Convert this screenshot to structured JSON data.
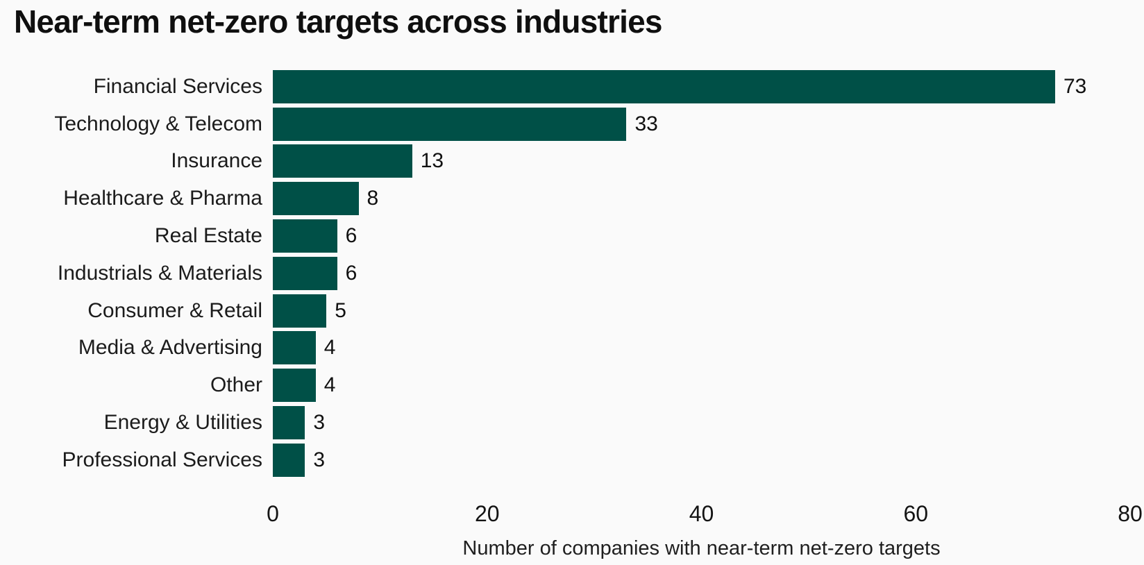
{
  "page": {
    "background": "#fafafa"
  },
  "chart_data": {
    "type": "bar",
    "orientation": "horizontal",
    "title": "Near-term net-zero targets across industries",
    "categories": [
      "Financial Services",
      "Technology & Telecom",
      "Insurance",
      "Healthcare & Pharma",
      "Real Estate",
      "Industrials & Materials",
      "Consumer & Retail",
      "Media & Advertising",
      "Other",
      "Energy & Utilities",
      "Professional Services"
    ],
    "values": [
      73,
      33,
      13,
      8,
      6,
      6,
      5,
      4,
      4,
      3,
      3
    ],
    "value_labels": [
      "73",
      "33",
      "13",
      "8",
      "6",
      "6",
      "5",
      "4",
      "4",
      "3",
      "3"
    ],
    "xlabel": "Number of companies with near-term net-zero targets",
    "xlim": [
      0,
      80
    ],
    "xticks": [
      0,
      20,
      40,
      60,
      80
    ],
    "bar_color": "#005047",
    "grid": false,
    "legend": "none",
    "value_labels_shown": true
  }
}
